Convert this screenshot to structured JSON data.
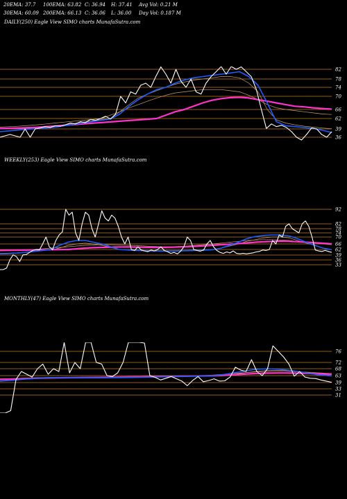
{
  "header": {
    "row1": [
      "20EMA: 37.7",
      "100EMA: 63.82",
      "C: 36.94",
      "H: 37.41",
      "Avg Vol: 0.21 M"
    ],
    "row2": [
      "30EMA: 60.09",
      "200EMA: 66.13",
      "C: 36.06",
      "L: 36.00",
      "Day Vol: 0.187 M"
    ]
  },
  "colors": {
    "background": "#000000",
    "price": "#ffffff",
    "ema_blue": "#1e5cff",
    "ema_magenta": "#ff33cc",
    "level_lines": "#c87a1e",
    "ema_thin": "#c8a070"
  },
  "chart_data": [
    {
      "type": "line",
      "title": "DAILY(250) Eagle  View  SIMO charts MunafaSutra.com",
      "yticks": [
        82,
        78,
        74,
        70,
        66,
        62,
        39,
        36
      ],
      "ylim": [
        33,
        86
      ],
      "series": [
        {
          "name": "price",
          "values": [
            36,
            36.5,
            37,
            36.5,
            36,
            39,
            36,
            39,
            41,
            44,
            42,
            46,
            45,
            48,
            52,
            50,
            55,
            53,
            60,
            58,
            62,
            63,
            61,
            64,
            70,
            68,
            72,
            71,
            75,
            76,
            74,
            79,
            83,
            80,
            76,
            82,
            77,
            74,
            78,
            72,
            71,
            76,
            79,
            81,
            84,
            80,
            85,
            82,
            83,
            81,
            79,
            73,
            66,
            40,
            50,
            44,
            47,
            42,
            38,
            36,
            35,
            37,
            41,
            39,
            37,
            36,
            38
          ]
        },
        {
          "name": "EMA20",
          "values": [
            38,
            38.3,
            38.6,
            38.9,
            39.5,
            41,
            43,
            46,
            49,
            52,
            55,
            58,
            61,
            64,
            67,
            69,
            71,
            73,
            74,
            76,
            77.5,
            78.5,
            79,
            79.5,
            80,
            80.5,
            81,
            79,
            75,
            68,
            55,
            46,
            44,
            42,
            40,
            38.5,
            37.7
          ]
        },
        {
          "name": "EMA30",
          "values": [
            39,
            39.2,
            39.5,
            40,
            41,
            43,
            45,
            48,
            51,
            54,
            57,
            60,
            62,
            65,
            67.5,
            69.5,
            71,
            72.5,
            74,
            75.5,
            76.5,
            77.5,
            78,
            78.5,
            79,
            79,
            78.5,
            76,
            72,
            66,
            59,
            52,
            48,
            45,
            43,
            41,
            39.5
          ]
        },
        {
          "name": "EMA100",
          "values": [
            43,
            44,
            45,
            46.5,
            48,
            50,
            52,
            54,
            56,
            58,
            60,
            62,
            63.5,
            65,
            66.5,
            67.5,
            68.5,
            69.5,
            70.5,
            71.5,
            72,
            72.5,
            73,
            73,
            73,
            72.5,
            72,
            70.5,
            69,
            67.5,
            66.5,
            66,
            65.5,
            65,
            64.5,
            64,
            63.8
          ]
        },
        {
          "name": "EMA200",
          "values": [
            40,
            40.5,
            41,
            41.8,
            42.5,
            44,
            45.5,
            47,
            48.5,
            50,
            51.5,
            53,
            54.5,
            56,
            57.5,
            59,
            60.5,
            62,
            63.5,
            65,
            66,
            67,
            68,
            68.8,
            69.3,
            69.6,
            69.7,
            69.5,
            69,
            68.5,
            68,
            67.5,
            67,
            66.8,
            66.5,
            66.3,
            66.1
          ]
        }
      ]
    },
    {
      "type": "line",
      "title": "WEEKLY(253) Eagle  View  SIMO charts MunafaSutra.com",
      "yticks": [
        92,
        82,
        78,
        74,
        70,
        66,
        62,
        39,
        36,
        33
      ],
      "ylim": [
        20,
        96
      ],
      "series": [
        {
          "name": "price",
          "values": [
            30,
            30,
            31,
            36,
            40,
            38,
            35,
            40,
            41,
            50,
            58,
            62,
            60,
            66,
            70,
            64,
            61,
            68,
            72,
            75,
            92,
            88,
            90,
            74,
            68,
            82,
            90,
            88,
            78,
            70,
            82,
            91,
            86,
            84,
            88,
            86,
            80,
            70,
            66,
            70,
            62,
            58,
            64,
            60,
            56,
            53,
            60,
            56,
            62,
            64,
            58,
            53,
            46,
            50,
            44,
            55,
            64,
            70,
            68,
            62,
            58,
            55,
            60,
            66,
            68,
            64,
            58,
            50,
            46,
            52,
            48,
            56,
            46,
            44,
            46,
            44,
            46,
            48,
            52,
            54,
            60,
            58,
            62,
            68,
            66,
            72,
            70,
            80,
            82,
            78,
            76,
            74,
            82,
            84,
            80,
            70,
            60,
            56,
            54,
            58,
            54,
            50
          ]
        },
        {
          "name": "EMA20",
          "values": [
            44,
            45,
            47,
            50,
            54,
            58,
            62,
            65,
            67,
            68,
            68,
            67,
            66,
            64,
            62,
            60,
            58,
            57,
            56,
            55.5,
            55.5,
            56,
            57,
            58,
            59.5,
            61,
            63,
            65,
            67,
            69,
            70.5,
            71.5,
            72,
            72,
            71,
            69,
            67,
            65,
            63,
            61
          ]
        },
        {
          "name": "EMA30",
          "values": [
            46,
            47,
            48.5,
            51,
            54,
            57,
            60,
            63,
            65,
            66,
            66.5,
            66,
            65,
            63.5,
            62,
            60.5,
            59,
            58,
            57.5,
            57,
            57,
            57.5,
            58,
            59,
            60,
            61.5,
            63,
            64.5,
            66,
            67.5,
            68.5,
            69.5,
            70,
            70,
            69.5,
            68,
            66.5,
            65,
            63,
            61.5
          ]
        },
        {
          "name": "EMA100",
          "values": [
            60,
            60.5,
            61,
            61.5,
            62,
            62.5,
            63,
            63.5,
            64,
            64.5,
            65,
            65.3,
            65.5,
            65.5,
            65.3,
            65,
            64.8,
            64.5,
            64.2,
            64,
            64,
            64.2,
            64.5,
            65,
            65.5,
            66,
            66.5,
            67,
            67.5,
            68,
            68.3,
            68.5,
            68.5,
            68.3,
            68,
            67.5,
            67,
            66.5,
            66,
            65.5
          ]
        },
        {
          "name": "EMA200",
          "values": [
            58,
            58.5,
            59,
            59.5,
            60,
            60.5,
            61,
            61.5,
            62,
            62.5,
            63,
            63.3,
            63.5,
            63.7,
            63.8,
            63.8,
            63.7,
            63.6,
            63.5,
            63.5,
            63.6,
            63.8,
            64,
            64.3,
            64.6,
            65,
            65.4,
            65.8,
            66.2,
            66.6,
            67,
            67.3,
            67.5,
            67.6,
            67.5,
            67.3,
            67,
            66.7,
            66.4,
            66.1
          ]
        }
      ]
    },
    {
      "type": "line",
      "title": "MONTHLY(47) Eagle  View  SIMO charts MunafaSutra.com",
      "yticks": [
        76,
        72,
        68,
        63,
        39,
        33,
        31
      ],
      "ylim": [
        24,
        95
      ],
      "series": [
        {
          "name": "price",
          "values": [
            25,
            25,
            26,
            50,
            66,
            64,
            58,
            68,
            71,
            64,
            68,
            66,
            94,
            65,
            72,
            68,
            80,
            86,
            72,
            71,
            63,
            60,
            65,
            72,
            86,
            85,
            83,
            79,
            63,
            57,
            48,
            54,
            60,
            52,
            44,
            36,
            46,
            60,
            42,
            46,
            52,
            44,
            45,
            58,
            69,
            67,
            66,
            73,
            66,
            63,
            68,
            78,
            76,
            74,
            71,
            61,
            66,
            58,
            54,
            53,
            48,
            44,
            40
          ]
        },
        {
          "name": "EMA20",
          "values": [
            44,
            47,
            51,
            54,
            56,
            56.5,
            56,
            55.5,
            55.5,
            56,
            56.5,
            57,
            58,
            59,
            60,
            61,
            62,
            63,
            64.5,
            66,
            67.5,
            68,
            67.5,
            66.5,
            65,
            63.5,
            62
          ]
        },
        {
          "name": "EMA30",
          "values": [
            48,
            50,
            53,
            55,
            56,
            56.5,
            56.3,
            56,
            56,
            56.3,
            56.8,
            57.3,
            58,
            58.8,
            59.6,
            60.5,
            61.5,
            62.5,
            63.5,
            64.8,
            66,
            66.8,
            66.8,
            66.3,
            65.3,
            64.2,
            63
          ]
        },
        {
          "name": "EMA100",
          "values": [
            52,
            53,
            54.5,
            56,
            57,
            57.5,
            57.8,
            58,
            58.2,
            58.6,
            59.1,
            59.6,
            60.2,
            60.8,
            61.5,
            62.2,
            62.9,
            63.6,
            64.3,
            65,
            65.6,
            66,
            66.1,
            65.9,
            65.5,
            65,
            64.5
          ]
        },
        {
          "name": "EMA200",
          "values": [
            50,
            51,
            52.5,
            54,
            55,
            55.8,
            56.3,
            56.7,
            57.1,
            57.6,
            58.1,
            58.7,
            59.3,
            60,
            60.7,
            61.4,
            62.1,
            62.8,
            63.4,
            64,
            64.5,
            64.8,
            64.9,
            64.8,
            64.6,
            64.3,
            64
          ]
        }
      ]
    }
  ]
}
